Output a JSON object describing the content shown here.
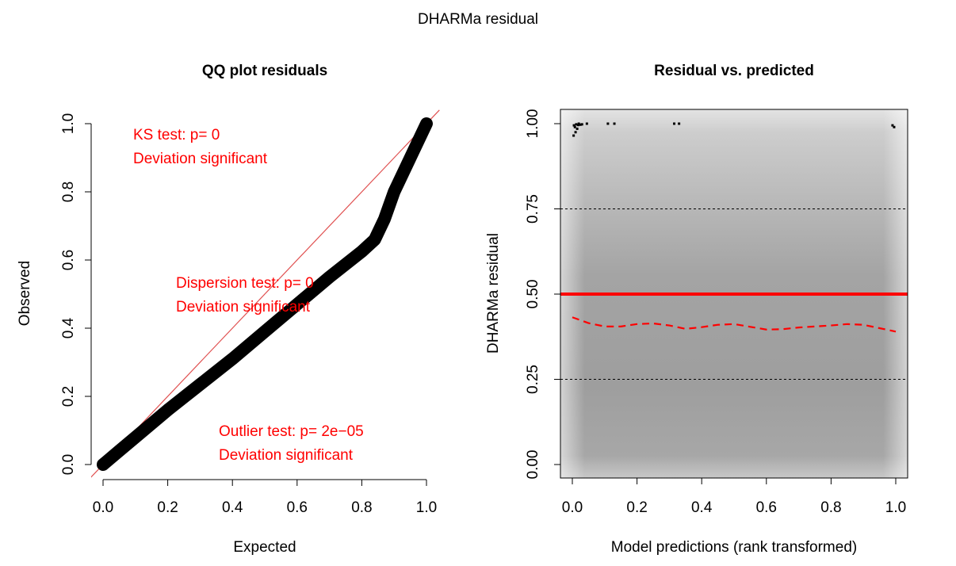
{
  "figure": {
    "title": "DHARMa residual"
  },
  "chart_data": [
    {
      "type": "scatter",
      "title": "QQ plot residuals",
      "xlabel": "Expected",
      "ylabel": "Observed",
      "xlim": [
        0,
        1
      ],
      "ylim": [
        0,
        1
      ],
      "x_ticks": [
        "0.0",
        "0.2",
        "0.4",
        "0.6",
        "0.8",
        "1.0"
      ],
      "y_ticks": [
        "0.0",
        "0.2",
        "0.4",
        "0.6",
        "0.8",
        "1.0"
      ],
      "reference_line": {
        "x": [
          0,
          1
        ],
        "y": [
          0,
          1
        ],
        "color": "#e05050"
      },
      "series": [
        {
          "x": [
            0.0,
            0.05,
            0.1,
            0.2,
            0.3,
            0.4,
            0.5,
            0.6,
            0.7,
            0.8,
            0.84,
            0.87,
            0.9,
            0.95,
            1.0
          ],
          "y": [
            0.0,
            0.04,
            0.08,
            0.16,
            0.235,
            0.31,
            0.39,
            0.47,
            0.55,
            0.625,
            0.66,
            0.72,
            0.8,
            0.9,
            1.0
          ],
          "color": "#000000"
        }
      ],
      "annotations": [
        {
          "lines": [
            "KS test: p= 0",
            "Deviation  significant"
          ],
          "color": "#ff0000"
        },
        {
          "lines": [
            "Dispersion test: p= 0",
            "Deviation  significant"
          ],
          "color": "#ff0000"
        },
        {
          "lines": [
            "Outlier test: p= 2e−05",
            "Deviation  significant"
          ],
          "color": "#ff0000"
        }
      ]
    },
    {
      "type": "heatmap",
      "title": "Residual vs. predicted",
      "xlabel": "Model predictions (rank transformed)",
      "ylabel": "DHARMa residual",
      "xlim": [
        0,
        1
      ],
      "ylim": [
        0,
        1
      ],
      "x_ticks": [
        "0.0",
        "0.2",
        "0.4",
        "0.6",
        "0.8",
        "1.0"
      ],
      "y_ticks": [
        "0.00",
        "0.25",
        "0.50",
        "0.75",
        "1.00"
      ],
      "hlines_dashed": [
        0.25,
        0.75
      ],
      "hline_solid": {
        "y": 0.5,
        "color": "#ff0000"
      },
      "smooth_line": {
        "color": "#ff0000",
        "x": [
          0.0,
          0.05,
          0.1,
          0.15,
          0.2,
          0.25,
          0.3,
          0.35,
          0.4,
          0.45,
          0.5,
          0.55,
          0.6,
          0.65,
          0.7,
          0.75,
          0.8,
          0.85,
          0.9,
          0.95,
          1.0
        ],
        "y": [
          0.432,
          0.415,
          0.405,
          0.405,
          0.412,
          0.414,
          0.408,
          0.398,
          0.403,
          0.41,
          0.412,
          0.404,
          0.396,
          0.397,
          0.402,
          0.405,
          0.408,
          0.412,
          0.41,
          0.4,
          0.39
        ]
      },
      "outlier_points": {
        "color": "#000000",
        "x": [
          0.005,
          0.008,
          0.012,
          0.015,
          0.018,
          0.02,
          0.025,
          0.03,
          0.01,
          0.004,
          0.045,
          0.11,
          0.13,
          0.315,
          0.33,
          0.99,
          0.995
        ],
        "y": [
          0.995,
          0.99,
          0.998,
          0.985,
          0.996,
          1.0,
          0.997,
          0.998,
          0.975,
          0.965,
          1.0,
          1.0,
          1.0,
          1.0,
          1.0,
          0.995,
          0.99
        ]
      }
    }
  ]
}
